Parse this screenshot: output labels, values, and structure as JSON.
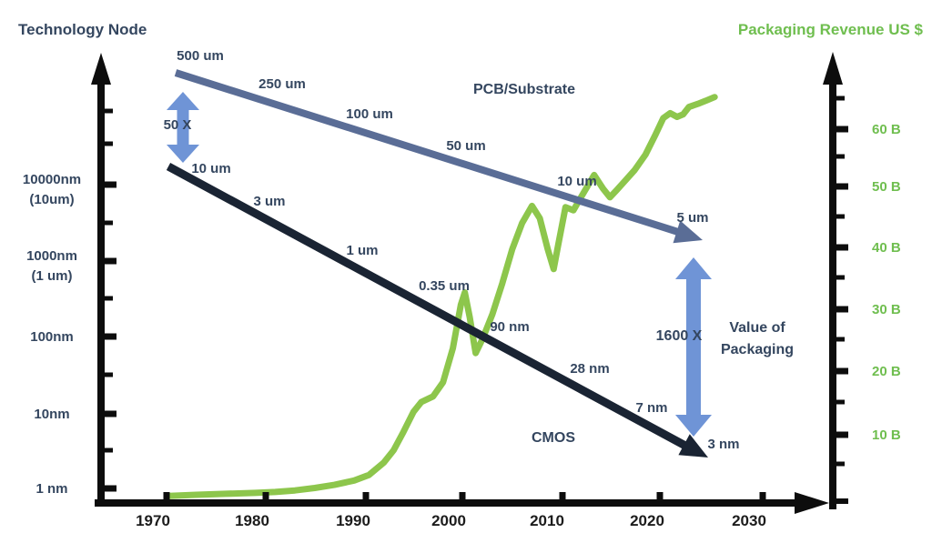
{
  "titles": {
    "left": "Technology Node",
    "right": "Packaging Revenue US $"
  },
  "left_axis": {
    "tick_labels": [
      "10000nm",
      "(10um)",
      "1000nm",
      "(1 um)",
      "100nm",
      "10nm",
      "1 nm"
    ]
  },
  "right_axis": {
    "tick_labels": [
      "60 B",
      "50 B",
      "40 B",
      "30 B",
      "20 B",
      "10 B"
    ]
  },
  "x_axis": {
    "tick_labels": [
      "1970",
      "1980",
      "1990",
      "2000",
      "2010",
      "2020",
      "2030"
    ]
  },
  "annotations": {
    "multiplier_left": "50 X",
    "multiplier_right": "1600 X",
    "value_line1": "Value of",
    "value_line2": "Packaging"
  },
  "colors": {
    "revenue_curve": "#8dc64c",
    "green_text": "#6fbe4f",
    "navy_text": "#34465f",
    "pcb_arrow": "#5a6d96",
    "cmos_arrow": "#1a2433",
    "blue_double_arrow": "#6f94d6",
    "axis": "#0d0d0d"
  },
  "chart_data": {
    "type": "line",
    "title": "Technology Node vs Packaging Revenue US $",
    "x_axis": {
      "tick_years": [
        1970,
        1980,
        1990,
        2000,
        2010,
        2020,
        2030
      ],
      "range": [
        1963,
        2037
      ]
    },
    "y_right_axis": {
      "label": "Packaging Revenue US $",
      "unit": "billion USD",
      "ticks": [
        10,
        20,
        30,
        40,
        50,
        60
      ],
      "range": [
        0,
        70
      ],
      "grid": false
    },
    "y_left_axis": {
      "label": "Technology Node",
      "scale": "log",
      "ticks": [
        "10000nm (10um)",
        "1000nm (1 um)",
        "100nm",
        "10nm",
        "1 nm"
      ]
    },
    "series": [
      {
        "name": "Packaging Revenue",
        "color": "#8dc64c",
        "x": [
          1970.2,
          1973,
          1976,
          1979,
          1981,
          1983,
          1985,
          1987,
          1989,
          1990.5,
          1992,
          1993,
          1994,
          1995,
          1995.8,
          1997,
          1998,
          1999,
          1999.8,
          2000.2,
          2000.7,
          2001.3,
          2002,
          2003,
          2004,
          2005,
          2006,
          2007,
          2007.8,
          2008.6,
          2009.2,
          2009.7,
          2010.4,
          2011.2,
          2012,
          2013.3,
          2014.2,
          2014.9,
          2015.6,
          2016.4,
          2017.4,
          2018.5,
          2019.5,
          2020.3,
          2021,
          2021.7,
          2022.3,
          2022.9,
          2023.8,
          2024.6,
          2025.5
        ],
        "y": [
          0.1,
          0.3,
          0.45,
          0.6,
          0.75,
          1.0,
          1.4,
          1.9,
          2.6,
          3.5,
          5.5,
          7.5,
          10.5,
          13.7,
          15.3,
          16.2,
          18.5,
          24,
          31,
          33,
          29,
          23.2,
          25.5,
          29.5,
          34.5,
          40,
          44.2,
          47,
          45,
          40,
          36.8,
          41,
          46.8,
          46.3,
          48.5,
          52,
          49.8,
          48.4,
          49.6,
          51,
          52.8,
          55.3,
          58.5,
          61.2,
          62,
          61.4,
          61.8,
          63,
          63.5,
          64,
          64.6
        ]
      }
    ],
    "trend_arrows": [
      {
        "name": "PCB/Substrate",
        "color": "#5a6d96",
        "nodes": [
          {
            "year": 1971,
            "label": "500 um"
          },
          {
            "year": 1982,
            "label": "250 um"
          },
          {
            "year": 1990,
            "label": "100 um"
          },
          {
            "year": 2000,
            "label": "50 um"
          },
          {
            "year": 2011,
            "label": "10 um"
          },
          {
            "year": 2023,
            "label": "5 um"
          }
        ]
      },
      {
        "name": "CMOS",
        "color": "#1a2433",
        "nodes": [
          {
            "year": 1974,
            "label": "10 um"
          },
          {
            "year": 1980,
            "label": "3 um"
          },
          {
            "year": 1990,
            "label": "1 um"
          },
          {
            "year": 1998,
            "label": "0.35 um"
          },
          {
            "year": 2005,
            "label": "90 nm"
          },
          {
            "year": 2013,
            "label": "28 nm"
          },
          {
            "year": 2019,
            "label": "7 nm"
          },
          {
            "year": 2026,
            "label": "3 nm"
          }
        ]
      }
    ],
    "annotations": [
      {
        "label": "50 X",
        "meaning": "gap between PCB/Substrate and CMOS nodes ~1970s"
      },
      {
        "label": "1600 X",
        "meaning": "gap between PCB/Substrate and CMOS nodes ~2020s"
      },
      {
        "label": "Value of Packaging",
        "meaning": "widening node gap drives packaging value"
      }
    ]
  }
}
